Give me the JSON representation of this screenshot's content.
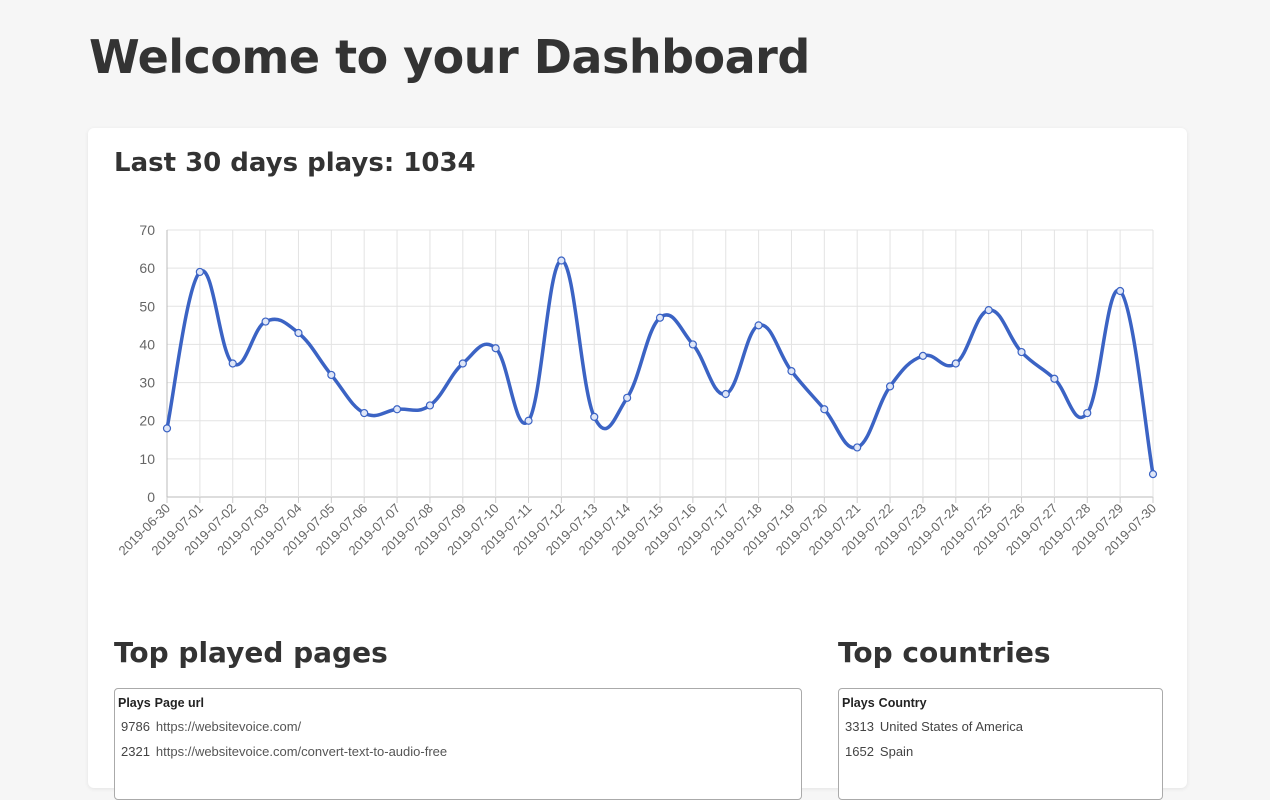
{
  "page": {
    "title": "Welcome to your Dashboard"
  },
  "plays": {
    "heading": "Last 30 days plays: 1034"
  },
  "chart_data": {
    "type": "line",
    "title": "",
    "xlabel": "",
    "ylabel": "",
    "ylim": [
      0,
      70
    ],
    "yticks": [
      0,
      10,
      20,
      30,
      40,
      50,
      60,
      70
    ],
    "grid": true,
    "color": "#3b63c4",
    "categories": [
      "2019-06-30",
      "2019-07-01",
      "2019-07-02",
      "2019-07-03",
      "2019-07-04",
      "2019-07-05",
      "2019-07-06",
      "2019-07-07",
      "2019-07-08",
      "2019-07-09",
      "2019-07-10",
      "2019-07-11",
      "2019-07-12",
      "2019-07-13",
      "2019-07-14",
      "2019-07-15",
      "2019-07-16",
      "2019-07-17",
      "2019-07-18",
      "2019-07-19",
      "2019-07-20",
      "2019-07-21",
      "2019-07-22",
      "2019-07-23",
      "2019-07-24",
      "2019-07-25",
      "2019-07-26",
      "2019-07-27",
      "2019-07-28",
      "2019-07-29",
      "2019-07-30"
    ],
    "values": [
      18,
      59,
      35,
      46,
      43,
      32,
      22,
      23,
      24,
      35,
      39,
      20,
      62,
      21,
      26,
      47,
      40,
      27,
      45,
      33,
      23,
      13,
      29,
      37,
      35,
      49,
      38,
      31,
      22,
      54,
      6
    ]
  },
  "top_pages": {
    "heading": "Top played pages",
    "columns": [
      "Plays",
      "Page url"
    ],
    "rows": [
      {
        "plays": "9786",
        "url": "https://websitevoice.com/"
      },
      {
        "plays": "2321",
        "url": "https://websitevoice.com/convert-text-to-audio-free"
      }
    ]
  },
  "top_countries": {
    "heading": "Top countries",
    "columns": [
      "Plays",
      "Country"
    ],
    "rows": [
      {
        "plays": "3313",
        "country": "United States of America"
      },
      {
        "plays": "1652",
        "country": "Spain"
      }
    ]
  }
}
